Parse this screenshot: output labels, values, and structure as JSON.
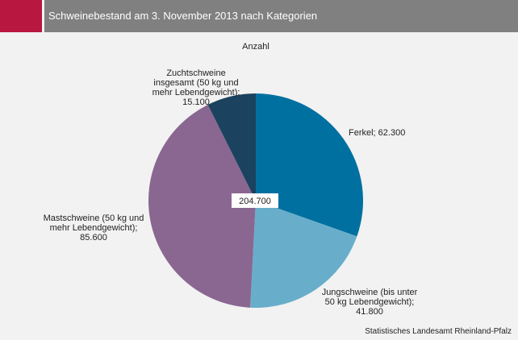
{
  "header": {
    "title": "Schweinebestand am 3. November 2013 nach Kategorien"
  },
  "footer": {
    "source": "Statistisches Landesamt Rheinland-Pfalz"
  },
  "chart_data": {
    "type": "pie",
    "title": "Schweinebestand am 3. November 2013 nach Kategorien",
    "subtitle": "Anzahl",
    "total_label": "204.700",
    "total": 204700,
    "start_angle_deg": 0,
    "direction": "clockwise",
    "slices": [
      {
        "name": "Ferkel",
        "value": 62300,
        "label_lines": [
          "Ferkel; 62.300"
        ],
        "color": "#0070a0"
      },
      {
        "name": "Jungschweine (bis unter 50 kg Lebendgewicht)",
        "value": 41800,
        "label_lines": [
          "Jungschweine (bis unter",
          "50 kg Lebendgewicht);",
          "41.800"
        ],
        "color": "#68aecb"
      },
      {
        "name": "Mastschweine (50 kg und mehr Lebendgewicht)",
        "value": 85600,
        "label_lines": [
          "Mastschweine (50 kg und",
          "mehr Lebendgewicht);",
          "85.600"
        ],
        "color": "#8a6791"
      },
      {
        "name": "Zuchtschweine insgesamt (50 kg und mehr Lebendgewicht)",
        "value": 15100,
        "label_lines": [
          "Zuchtschweine",
          "insgesamt (50 kg und",
          "mehr Lebendgewicht);",
          "15.100"
        ],
        "color": "#1b425f"
      }
    ]
  }
}
